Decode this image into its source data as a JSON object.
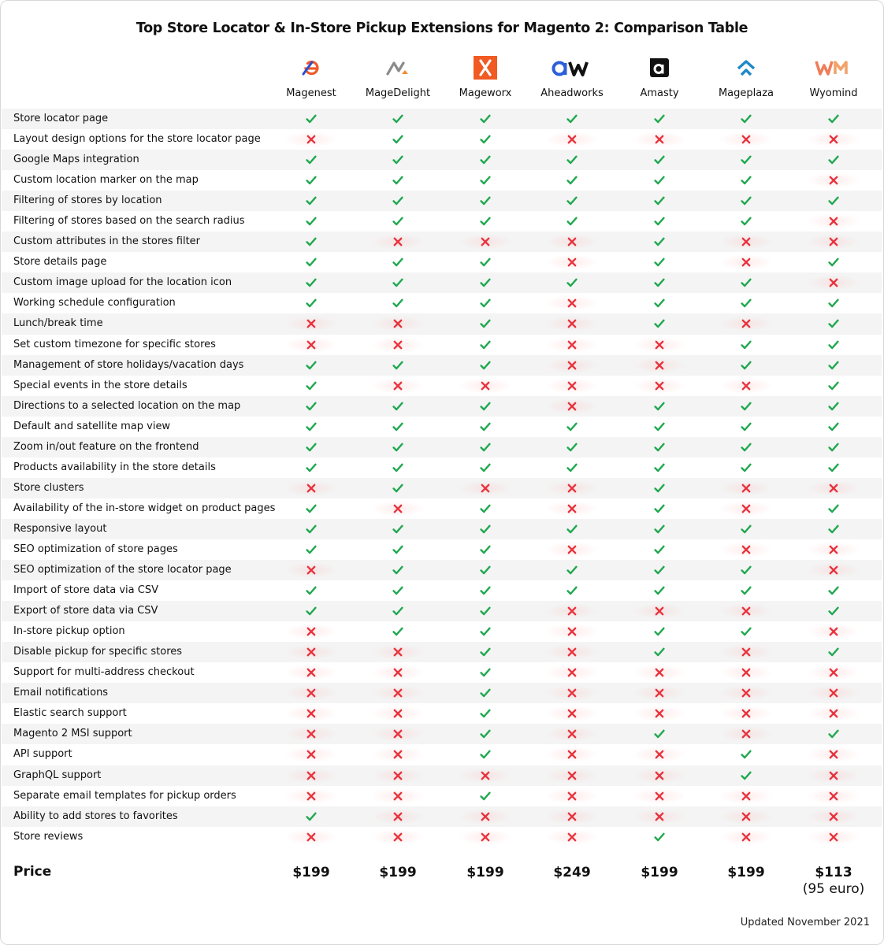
{
  "title": "Top Store Locator & In-Store Pickup Extensions for Magento 2: Comparison Table",
  "vendors": [
    {
      "name": "Magenest",
      "logo": "magenest-logo",
      "color": "#f05a28"
    },
    {
      "name": "MageDelight",
      "logo": "magedelight-logo",
      "color": "#8a8a8a"
    },
    {
      "name": "Mageworx",
      "logo": "mageworx-logo",
      "color": "#f15a22"
    },
    {
      "name": "Aheadworks",
      "logo": "aheadworks-logo",
      "color": "#2b5fd9"
    },
    {
      "name": "Amasty",
      "logo": "amasty-logo",
      "color": "#222222"
    },
    {
      "name": "Mageplaza",
      "logo": "mageplaza-logo",
      "color": "#1e88c8"
    },
    {
      "name": "Wyomind",
      "logo": "wyomind-logo",
      "color": "#f08a5d"
    }
  ],
  "features": [
    {
      "label": "Store locator page",
      "values": [
        1,
        1,
        1,
        1,
        1,
        1,
        1
      ]
    },
    {
      "label": "Layout design options for the store locator page",
      "values": [
        0,
        1,
        1,
        0,
        0,
        0,
        0
      ]
    },
    {
      "label": "Google Maps integration",
      "values": [
        1,
        1,
        1,
        1,
        1,
        1,
        1
      ]
    },
    {
      "label": "Custom location marker on the map",
      "values": [
        1,
        1,
        1,
        1,
        1,
        1,
        0
      ]
    },
    {
      "label": "Filtering of stores by location",
      "values": [
        1,
        1,
        1,
        1,
        1,
        1,
        1
      ]
    },
    {
      "label": "Filtering of stores based on the search radius",
      "values": [
        1,
        1,
        1,
        1,
        1,
        1,
        0
      ]
    },
    {
      "label": "Custom attributes in the stores filter",
      "values": [
        1,
        0,
        0,
        0,
        1,
        0,
        0
      ]
    },
    {
      "label": "Store details page",
      "values": [
        1,
        1,
        1,
        0,
        1,
        0,
        1
      ]
    },
    {
      "label": "Custom image upload for the location icon",
      "values": [
        1,
        1,
        1,
        1,
        1,
        1,
        0
      ]
    },
    {
      "label": "Working schedule configuration",
      "values": [
        1,
        1,
        1,
        0,
        1,
        1,
        1
      ]
    },
    {
      "label": "Lunch/break time",
      "values": [
        0,
        0,
        1,
        0,
        1,
        0,
        1
      ]
    },
    {
      "label": "Set custom timezone for specific stores",
      "values": [
        0,
        0,
        1,
        0,
        0,
        1,
        1
      ]
    },
    {
      "label": "Management of store holidays/vacation days",
      "values": [
        1,
        1,
        1,
        0,
        0,
        1,
        1
      ]
    },
    {
      "label": "Special events in the store details",
      "values": [
        1,
        0,
        0,
        0,
        0,
        0,
        1
      ]
    },
    {
      "label": "Directions to a selected location on the map",
      "values": [
        1,
        1,
        1,
        0,
        1,
        1,
        1
      ]
    },
    {
      "label": "Default and satellite map view",
      "values": [
        1,
        1,
        1,
        1,
        1,
        1,
        1
      ]
    },
    {
      "label": "Zoom in/out feature on the frontend",
      "values": [
        1,
        1,
        1,
        1,
        1,
        1,
        1
      ]
    },
    {
      "label": "Products availability in the store details",
      "values": [
        1,
        1,
        1,
        1,
        1,
        1,
        1
      ]
    },
    {
      "label": "Store clusters",
      "values": [
        0,
        1,
        0,
        0,
        1,
        0,
        0
      ]
    },
    {
      "label": "Availability of the in-store widget on product pages",
      "values": [
        1,
        0,
        1,
        0,
        1,
        0,
        1
      ]
    },
    {
      "label": "Responsive layout",
      "values": [
        1,
        1,
        1,
        1,
        1,
        1,
        1
      ]
    },
    {
      "label": "SEO optimization of store pages",
      "values": [
        1,
        1,
        1,
        0,
        1,
        0,
        0
      ]
    },
    {
      "label": "SEO optimization of the store locator page",
      "values": [
        0,
        1,
        1,
        1,
        1,
        1,
        0
      ]
    },
    {
      "label": "Import of store data via CSV",
      "values": [
        1,
        1,
        1,
        1,
        1,
        1,
        1
      ]
    },
    {
      "label": "Export of store data via CSV",
      "values": [
        1,
        1,
        1,
        0,
        0,
        0,
        1
      ]
    },
    {
      "label": "In-store pickup option",
      "values": [
        0,
        1,
        1,
        0,
        1,
        1,
        0
      ]
    },
    {
      "label": "Disable pickup for specific stores",
      "values": [
        0,
        0,
        1,
        0,
        1,
        0,
        1
      ]
    },
    {
      "label": "Support for multi-address checkout",
      "values": [
        0,
        0,
        1,
        0,
        0,
        0,
        0
      ]
    },
    {
      "label": "Email notifications",
      "values": [
        0,
        0,
        1,
        0,
        0,
        0,
        0
      ]
    },
    {
      "label": "Elastic search support",
      "values": [
        0,
        0,
        1,
        0,
        0,
        0,
        0
      ]
    },
    {
      "label": "Magento 2 MSI support",
      "values": [
        0,
        0,
        1,
        0,
        1,
        0,
        1
      ]
    },
    {
      "label": "API support",
      "values": [
        0,
        0,
        1,
        0,
        0,
        1,
        0
      ]
    },
    {
      "label": "GraphQL support",
      "values": [
        0,
        0,
        0,
        0,
        0,
        1,
        0
      ]
    },
    {
      "label": "Separate email templates for pickup orders",
      "values": [
        0,
        0,
        1,
        0,
        0,
        0,
        0
      ]
    },
    {
      "label": "Ability to add stores to favorites",
      "values": [
        1,
        0,
        0,
        0,
        0,
        0,
        0
      ]
    },
    {
      "label": "Store reviews",
      "values": [
        0,
        0,
        0,
        0,
        1,
        0,
        0
      ]
    }
  ],
  "price_label": "Price",
  "prices": [
    {
      "main": "$199",
      "sub": ""
    },
    {
      "main": "$199",
      "sub": ""
    },
    {
      "main": "$199",
      "sub": ""
    },
    {
      "main": "$249",
      "sub": ""
    },
    {
      "main": "$199",
      "sub": ""
    },
    {
      "main": "$199",
      "sub": ""
    },
    {
      "main": "$113",
      "sub": "(95 euro)"
    }
  ],
  "updated": "Updated November 2021",
  "colors": {
    "check": "#1fa84f",
    "cross": "#e8323c",
    "row_alt": "#f4f4f4"
  },
  "icons": {
    "yes": "check-icon",
    "no": "cross-icon"
  }
}
